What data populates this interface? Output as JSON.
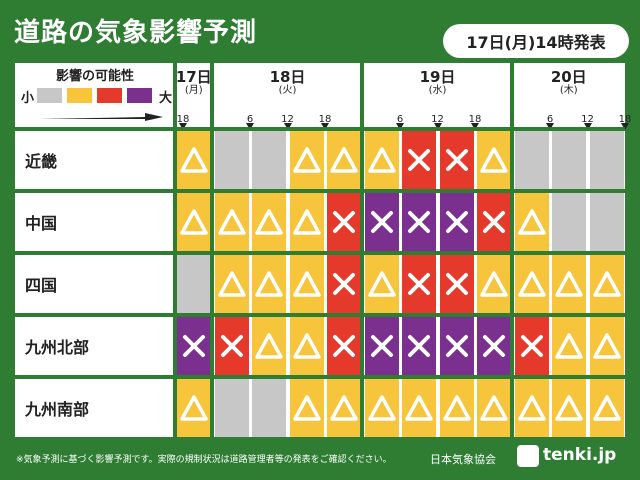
{
  "title": "道路の気象影響予測",
  "issued": "17日(月)14時発表",
  "legend": {
    "title": "影響の可能性",
    "low": "小",
    "high": "大",
    "levels": [
      {
        "name": "none",
        "color": "#c7c7c7"
      },
      {
        "name": "low",
        "color": "#f6c53c"
      },
      {
        "name": "mid",
        "color": "#e53a2b"
      },
      {
        "name": "high",
        "color": "#7b2f8e"
      }
    ]
  },
  "days": [
    {
      "label": "17日",
      "weekday": "(月)"
    },
    {
      "label": "18日",
      "weekday": "(火)"
    },
    {
      "label": "19日",
      "weekday": "(水)"
    },
    {
      "label": "20日",
      "weekday": "(木)"
    }
  ],
  "hours": [
    "18",
    "6",
    "12",
    "18",
    "6",
    "12",
    "18",
    "6",
    "12",
    "18"
  ],
  "regions": [
    {
      "name": "近畿",
      "levels": [
        "low",
        "none",
        "none",
        "low",
        "low",
        "low",
        "mid",
        "mid",
        "low",
        "none",
        "none",
        "none"
      ]
    },
    {
      "name": "中国",
      "levels": [
        "low",
        "low",
        "low",
        "low",
        "mid",
        "high",
        "high",
        "high",
        "mid",
        "low",
        "none",
        "none"
      ]
    },
    {
      "name": "四国",
      "levels": [
        "none",
        "low",
        "low",
        "low",
        "mid",
        "low",
        "mid",
        "mid",
        "low",
        "low",
        "low",
        "low"
      ]
    },
    {
      "name": "九州北部",
      "levels": [
        "high",
        "mid",
        "low",
        "low",
        "mid",
        "high",
        "high",
        "high",
        "high",
        "mid",
        "low",
        "low"
      ]
    },
    {
      "name": "九州南部",
      "levels": [
        "low",
        "none",
        "none",
        "low",
        "low",
        "low",
        "low",
        "low",
        "low",
        "low",
        "low",
        "low"
      ]
    }
  ],
  "footnote": "※気象予測に基づく影響予測です。実際の規制状況は道路管理者等の発表をご確認ください。",
  "organization": "日本気象協会",
  "brand": "tenki.jp"
}
